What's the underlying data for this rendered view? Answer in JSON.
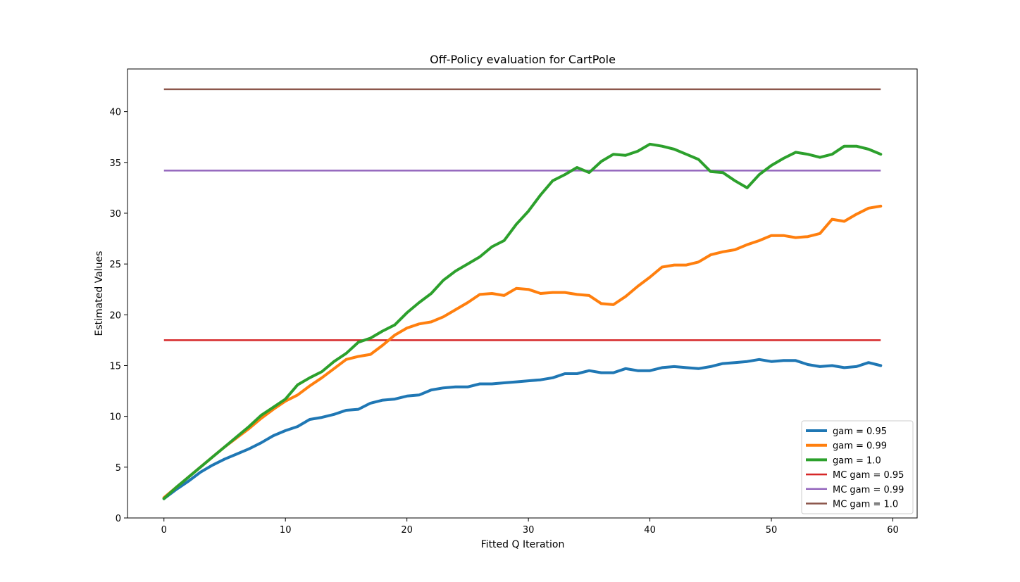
{
  "chart_data": {
    "type": "line",
    "title": "Off-Policy evaluation for CartPole",
    "xlabel": "Fitted Q Iteration",
    "ylabel": "Estimated Values",
    "xlim": [
      -3,
      62
    ],
    "ylim": [
      0,
      44.2
    ],
    "xticks": [
      0,
      10,
      20,
      30,
      40,
      50,
      60
    ],
    "yticks": [
      0,
      5,
      10,
      15,
      20,
      25,
      30,
      35,
      40
    ],
    "grid": false,
    "legend_position": "lower-right",
    "x": [
      0,
      1,
      2,
      3,
      4,
      5,
      6,
      7,
      8,
      9,
      10,
      11,
      12,
      13,
      14,
      15,
      16,
      17,
      18,
      19,
      20,
      21,
      22,
      23,
      24,
      25,
      26,
      27,
      28,
      29,
      30,
      31,
      32,
      33,
      34,
      35,
      36,
      37,
      38,
      39,
      40,
      41,
      42,
      43,
      44,
      45,
      46,
      47,
      48,
      49,
      50,
      51,
      52,
      53,
      54,
      55,
      56,
      57,
      58,
      59
    ],
    "series": [
      {
        "name": "gam = 0.95",
        "color": "#1f77b4",
        "width": 4,
        "values": [
          1.9,
          2.8,
          3.6,
          4.5,
          5.2,
          5.8,
          6.3,
          6.8,
          7.4,
          8.1,
          8.6,
          9.0,
          9.7,
          9.9,
          10.2,
          10.6,
          10.7,
          11.3,
          11.6,
          11.7,
          12.0,
          12.1,
          12.6,
          12.8,
          12.9,
          12.9,
          13.2,
          13.2,
          13.3,
          13.4,
          13.5,
          13.6,
          13.8,
          14.2,
          14.2,
          14.5,
          14.3,
          14.3,
          14.7,
          14.5,
          14.5,
          14.8,
          14.9,
          14.8,
          14.7,
          14.9,
          15.2,
          15.3,
          15.4,
          15.6,
          15.4,
          15.5,
          15.5,
          15.1,
          14.9,
          15.0,
          14.8,
          14.9,
          15.3,
          15.0
        ]
      },
      {
        "name": "gam = 0.99",
        "color": "#ff7f0e",
        "width": 4,
        "values": [
          2.0,
          3.0,
          4.0,
          5.0,
          6.0,
          7.0,
          7.9,
          8.8,
          9.8,
          10.7,
          11.5,
          12.1,
          13.0,
          13.8,
          14.7,
          15.6,
          15.9,
          16.1,
          17.0,
          18.0,
          18.7,
          19.1,
          19.3,
          19.8,
          20.5,
          21.2,
          22.0,
          22.1,
          21.9,
          22.6,
          22.5,
          22.1,
          22.2,
          22.2,
          22.0,
          21.9,
          21.1,
          21.0,
          21.8,
          22.8,
          23.7,
          24.7,
          24.9,
          24.9,
          25.2,
          25.9,
          26.2,
          26.4,
          26.9,
          27.3,
          27.8,
          27.8,
          27.6,
          27.7,
          28.0,
          29.4,
          29.2,
          29.9,
          30.5,
          30.7
        ]
      },
      {
        "name": "gam = 1.0",
        "color": "#2ca02c",
        "width": 4,
        "values": [
          1.9,
          3.0,
          4.0,
          5.0,
          6.0,
          7.0,
          8.0,
          9.0,
          10.1,
          10.9,
          11.7,
          13.1,
          13.8,
          14.4,
          15.4,
          16.2,
          17.3,
          17.7,
          18.4,
          19.0,
          20.2,
          21.2,
          22.1,
          23.4,
          24.3,
          25.0,
          25.7,
          26.7,
          27.3,
          28.9,
          30.2,
          31.8,
          33.2,
          33.8,
          34.5,
          34.0,
          35.1,
          35.8,
          35.7,
          36.1,
          36.8,
          36.6,
          36.3,
          35.8,
          35.3,
          34.1,
          34.0,
          33.2,
          32.5,
          33.8,
          34.7,
          35.4,
          36.0,
          35.8,
          35.5,
          35.8,
          36.6,
          36.6,
          36.3,
          35.8
        ]
      }
    ],
    "reference_lines": [
      {
        "name": "MC gam = 0.95",
        "color": "#d62728",
        "value": 17.5
      },
      {
        "name": "MC gam = 0.99",
        "color": "#9467bd",
        "value": 34.2
      },
      {
        "name": "MC gam = 1.0",
        "color": "#8c564b",
        "value": 42.2
      }
    ]
  }
}
